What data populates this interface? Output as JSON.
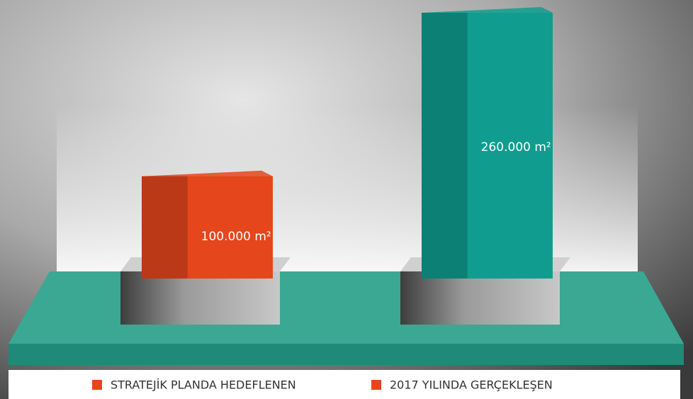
{
  "chart_data": {
    "type": "bar",
    "series": [
      {
        "name": "STRATEJİK PLANDA HEDEFLENEN",
        "color": "#e5461b",
        "legend_color": "#e5461b",
        "values": [
          100000
        ],
        "value_labels": [
          "100.000 m²"
        ]
      },
      {
        "name": "2017 YILINDA GERÇEKLEŞEN",
        "color": "#109d8f",
        "legend_color": "#e5461b",
        "values": [
          260000
        ],
        "value_labels": [
          "260.000 m²"
        ]
      }
    ]
  }
}
